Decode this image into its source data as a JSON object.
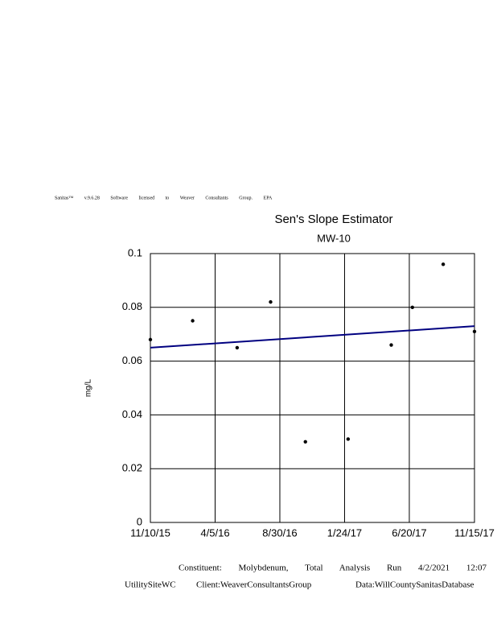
{
  "header": "Sanitas™ v.9.6.28 Software licensed to Weaver Consultants Group. EPA",
  "chart_data": {
    "type": "scatter",
    "title": "Sen's Slope Estimator",
    "subtitle": "MW-10",
    "y_label": "mg/L",
    "x": [
      "2015-11-10",
      "2016-02-14",
      "2016-05-25",
      "2016-08-09",
      "2016-10-27",
      "2017-02-01",
      "2017-05-10",
      "2017-06-27",
      "2017-09-05",
      "2017-11-15"
    ],
    "values": [
      0.068,
      0.075,
      0.065,
      0.082,
      0.03,
      0.031,
      0.066,
      0.08,
      0.096,
      0.071
    ],
    "color": "#000000",
    "trend": {
      "x": [
        "2015-11-10",
        "2017-11-15"
      ],
      "values": [
        0.065,
        0.073
      ],
      "color": "#000080"
    },
    "xlim": [
      "2015-11-10",
      "2017-11-15"
    ],
    "xticks": [
      {
        "value": "2015-11-10",
        "label": "11/10/15"
      },
      {
        "value": "2016-04-05",
        "label": "4/5/16"
      },
      {
        "value": "2016-08-30",
        "label": "8/30/16"
      },
      {
        "value": "2017-01-24",
        "label": "1/24/17"
      },
      {
        "value": "2017-06-20",
        "label": "6/20/17"
      },
      {
        "value": "2017-11-15",
        "label": "11/15/17"
      }
    ],
    "ylim": [
      0,
      0.1
    ],
    "yticks": [
      0,
      0.02,
      0.04,
      0.06,
      0.08,
      0.1
    ],
    "grid": true
  },
  "footer": {
    "line1": "Constituent: Molybdenum, Total Analysis Run 4/2/2021 12:07 PM",
    "site": "UtilitySiteWC",
    "client": "Client:WeaverConsultantsGroup",
    "data": "Data:WillCountySanitasDatabase"
  }
}
